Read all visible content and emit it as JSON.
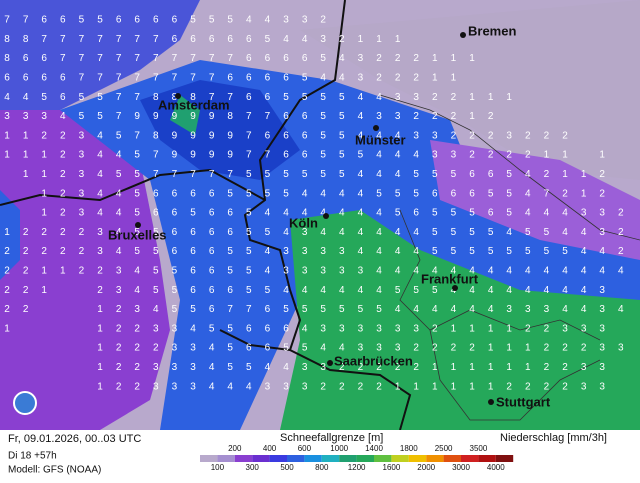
{
  "map": {
    "cities": [
      "Bremen",
      "Amsterdam",
      "Münster",
      "Bruxelles",
      "Köln",
      "Frankfurt",
      "Saarbrücken",
      "Stuttgart"
    ]
  },
  "grid": {
    "rows": [
      "776655666655544332                ",
      "8877777776666654432111            ",
      "86677777777776666543222111        ",
      "6666777777776666544322211         ",
      "4456557788877665555443322111      ",
      "333455799999877665543322212       ",
      "1122345789999766655444332223222   ",
      "1112344579999776655544433222211 1 ",
      " 11234557777755555544455566542112 ",
      "  1234456666555544445556665547212 ",
      "  12344566566544444445655565444332",
      "1222234556666554344444455554554432",
      "2222234556665543333444455555555442",
      "2211223455665543333344444444444444",
      "221  2345566655444444555444444443 ",
      "22   12345567765555554444443334434",
      "1    1223345566643333332111122333 ",
      "     12223345665544333222211122233",
      "     1223334554433222221111112233 ",
      "     1223334443332222111111222233 "
    ]
  },
  "footer": {
    "date": "Fr, 09.01.2026, 00..03 UTC",
    "run": "Di 18 +57h",
    "model": "Modell: GFS (NOAA)",
    "snow_title": "Schneefallgrenze [m]",
    "precip_title": "Niederschlag [mm/3h]",
    "scale": [
      100,
      200,
      300,
      400,
      500,
      600,
      800,
      1000,
      1200,
      1400,
      1600,
      1800,
      2000,
      2500,
      3000,
      3500,
      4000
    ]
  }
}
